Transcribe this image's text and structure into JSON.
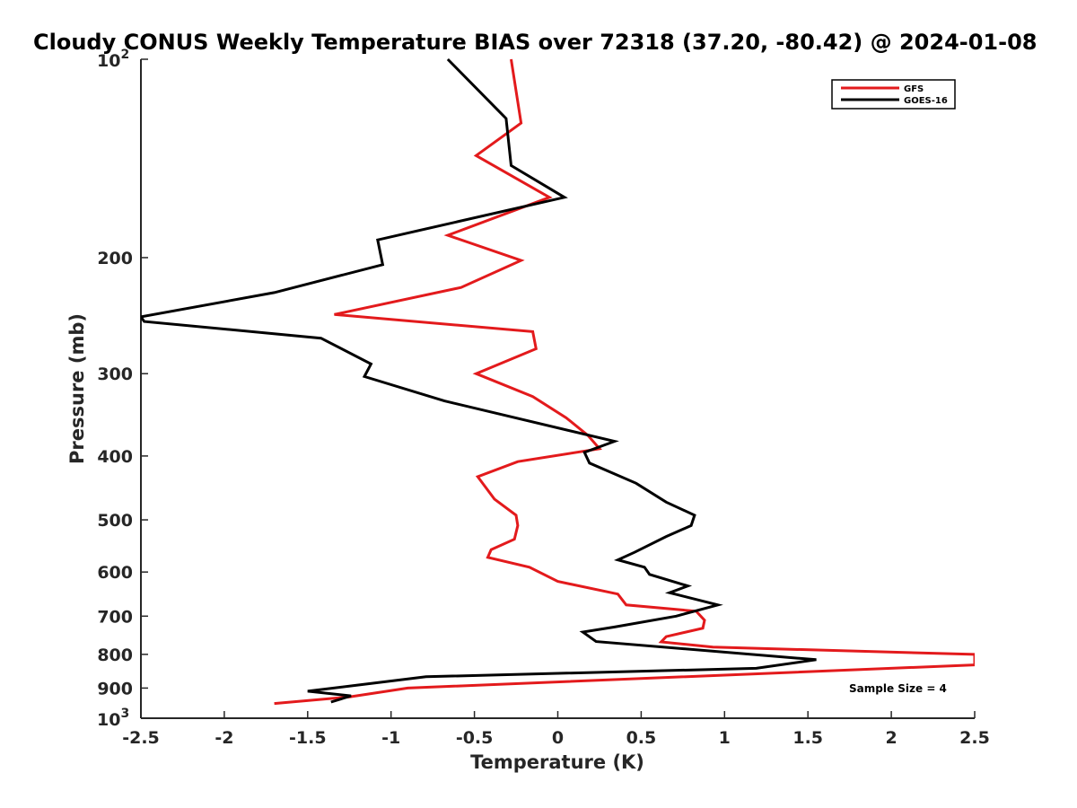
{
  "chart_data": {
    "type": "line",
    "title": "Cloudy CONUS Weekly Temperature BIAS over 72318 (37.20, -80.42) @ 2024-01-08",
    "xlabel": "Temperature (K)",
    "ylabel": "Pressure (mb)",
    "xlim": [
      -2.5,
      2.5
    ],
    "ylim": [
      100,
      1000
    ],
    "y_scale": "log",
    "y_reversed": true,
    "grid": false,
    "legend_position": "top-right",
    "x_ticks": [
      -2.5,
      -2,
      -1.5,
      -1,
      -0.5,
      0,
      0.5,
      1,
      1.5,
      2,
      2.5
    ],
    "x_tick_labels": [
      "-2.5",
      "-2",
      "-1.5",
      "-1",
      "-0.5",
      "0",
      "0.5",
      "1",
      "1.5",
      "2",
      "2.5"
    ],
    "y_ticks": [
      200,
      300,
      400,
      500,
      600,
      700,
      800,
      900
    ],
    "y_tick_labels": [
      "200",
      "300",
      "400",
      "500",
      "600",
      "700",
      "800",
      "900"
    ],
    "y_tick_top": {
      "base": "10",
      "exp": "2"
    },
    "y_tick_bottom": {
      "base": "10",
      "exp": "3"
    },
    "annotation": "Sample Size = 4",
    "series": [
      {
        "name": "GFS",
        "color": "#e31a1c",
        "points": [
          [
            -0.28,
            100
          ],
          [
            -0.22,
            125
          ],
          [
            -0.49,
            140
          ],
          [
            -0.05,
            162
          ],
          [
            -0.66,
            185
          ],
          [
            -0.22,
            202
          ],
          [
            -0.58,
            222
          ],
          [
            -1.34,
            244
          ],
          [
            -0.15,
            259
          ],
          [
            -0.13,
            275
          ],
          [
            -0.49,
            300
          ],
          [
            -0.15,
            325
          ],
          [
            0.05,
            350
          ],
          [
            0.18,
            372
          ],
          [
            0.25,
            390
          ],
          [
            -0.24,
            408
          ],
          [
            -0.48,
            430
          ],
          [
            -0.38,
            465
          ],
          [
            -0.25,
            492
          ],
          [
            -0.24,
            510
          ],
          [
            -0.26,
            535
          ],
          [
            -0.4,
            555
          ],
          [
            -0.42,
            570
          ],
          [
            -0.17,
            590
          ],
          [
            0.0,
            620
          ],
          [
            0.36,
            648
          ],
          [
            0.41,
            673
          ],
          [
            0.83,
            688
          ],
          [
            0.88,
            710
          ],
          [
            0.87,
            730
          ],
          [
            0.65,
            752
          ],
          [
            0.62,
            766
          ],
          [
            0.93,
            780
          ],
          [
            2.5,
            800
          ],
          [
            2.5,
            830
          ],
          [
            -0.9,
            900
          ],
          [
            -1.25,
            928
          ],
          [
            -1.7,
            950
          ]
        ]
      },
      {
        "name": "GOES-16",
        "color": "#000000",
        "points": [
          [
            -0.66,
            100
          ],
          [
            -0.31,
            123
          ],
          [
            -0.28,
            145
          ],
          [
            0.04,
            162
          ],
          [
            -1.08,
            188
          ],
          [
            -1.05,
            205
          ],
          [
            -1.7,
            226
          ],
          [
            -2.5,
            246
          ],
          [
            -2.48,
            250
          ],
          [
            -1.42,
            265
          ],
          [
            -1.12,
            290
          ],
          [
            -1.16,
            303
          ],
          [
            -0.68,
            330
          ],
          [
            0.34,
            380
          ],
          [
            0.16,
            395
          ],
          [
            0.19,
            410
          ],
          [
            0.47,
            440
          ],
          [
            0.65,
            470
          ],
          [
            0.82,
            492
          ],
          [
            0.8,
            510
          ],
          [
            0.65,
            530
          ],
          [
            0.46,
            560
          ],
          [
            0.36,
            575
          ],
          [
            0.52,
            590
          ],
          [
            0.55,
            605
          ],
          [
            0.78,
            630
          ],
          [
            0.67,
            645
          ],
          [
            0.96,
            673
          ],
          [
            0.71,
            700
          ],
          [
            0.34,
            727
          ],
          [
            0.15,
            740
          ],
          [
            0.23,
            765
          ],
          [
            1.55,
            815
          ],
          [
            1.19,
            840
          ],
          [
            -0.79,
            865
          ],
          [
            -1.5,
            910
          ],
          [
            -1.24,
            925
          ],
          [
            -1.36,
            945
          ]
        ]
      }
    ]
  }
}
